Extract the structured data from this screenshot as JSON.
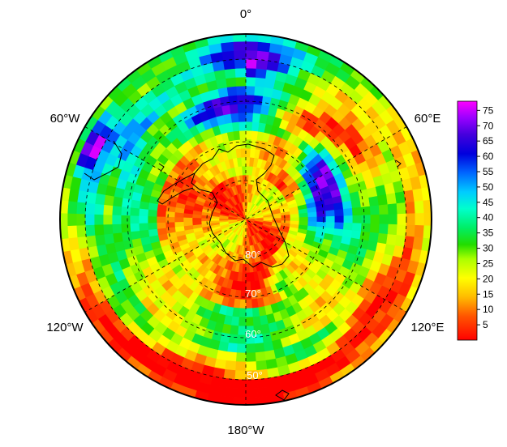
{
  "map": {
    "projection": "south-polar-stereographic",
    "longitude_labels": {
      "top": "0°",
      "upper_left": "60°W",
      "upper_right": "60°E",
      "lower_left": "120°W",
      "lower_right": "120°E",
      "bottom": "180°W"
    },
    "latitude_labels": [
      "80°",
      "70°",
      "60°",
      "50°"
    ],
    "gridlines": "dashed",
    "coastlines": "black outline"
  },
  "colorbar": {
    "ticks": [
      "5",
      "10",
      "15",
      "20",
      "25",
      "30",
      "35",
      "40",
      "45",
      "50",
      "55",
      "60",
      "65",
      "70",
      "75"
    ],
    "min": 0,
    "max": 78,
    "colors": [
      "#ff0000",
      "#ff6600",
      "#ffcc00",
      "#ffff00",
      "#99ff00",
      "#00dd00",
      "#00ee88",
      "#00ffff",
      "#0099ff",
      "#0000ff",
      "#3300cc",
      "#8800ff",
      "#ff00ff"
    ]
  }
}
